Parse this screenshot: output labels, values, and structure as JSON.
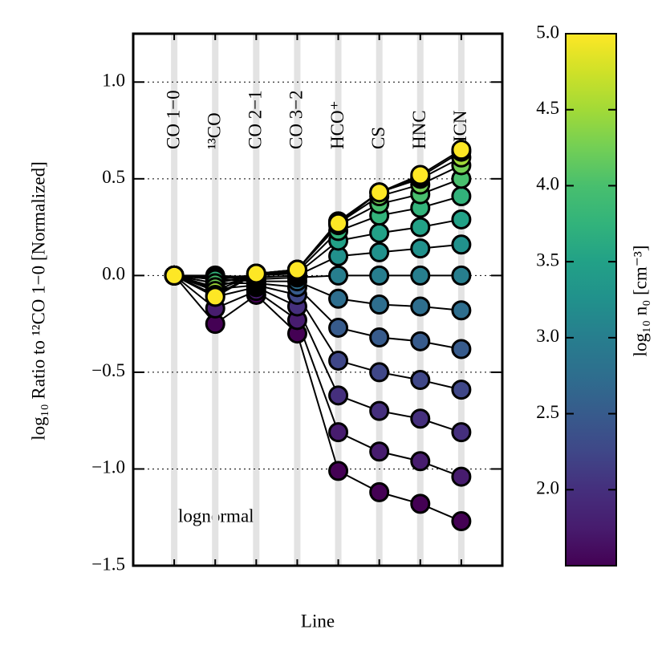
{
  "chart_data": {
    "type": "line",
    "ylabel": "log₁₀ Ratio to ¹²CO 1−0 [Normalized]",
    "xlabel": "Line",
    "annotation": "lognormal",
    "categories": [
      "CO 1−0",
      "¹³CO",
      "CO 2−1",
      "CO 3−2",
      "HCO⁺",
      "CS",
      "HNC",
      "HCN"
    ],
    "series": [
      {
        "color": "#440154",
        "values": [
          0,
          -0.25,
          -0.1,
          -0.3,
          -1.01,
          -1.12,
          -1.18,
          -1.27
        ]
      },
      {
        "color": "#471c6e",
        "values": [
          0,
          -0.17,
          -0.08,
          -0.23,
          -0.81,
          -0.91,
          -0.96,
          -1.04
        ]
      },
      {
        "color": "#452f7d",
        "values": [
          0,
          -0.11,
          -0.06,
          -0.16,
          -0.62,
          -0.7,
          -0.74,
          -0.81
        ]
      },
      {
        "color": "#3f4788",
        "values": [
          0,
          -0.07,
          -0.05,
          -0.1,
          -0.44,
          -0.5,
          -0.54,
          -0.59
        ]
      },
      {
        "color": "#375b8c",
        "values": [
          0,
          -0.04,
          -0.04,
          -0.06,
          -0.27,
          -0.32,
          -0.34,
          -0.38
        ]
      },
      {
        "color": "#2e6e8e",
        "values": [
          0,
          -0.02,
          -0.03,
          -0.03,
          -0.12,
          -0.15,
          -0.16,
          -0.18
        ]
      },
      {
        "color": "#277e8e",
        "values": [
          0,
          -0.01,
          -0.02,
          -0.01,
          0,
          0,
          0,
          0
        ]
      },
      {
        "color": "#21918c",
        "values": [
          0,
          0,
          -0.01,
          0,
          0.1,
          0.12,
          0.14,
          0.16
        ]
      },
      {
        "color": "#22a187",
        "values": [
          0,
          -0.01,
          0,
          0.01,
          0.18,
          0.22,
          0.25,
          0.29
        ]
      },
      {
        "color": "#32b37b",
        "values": [
          0,
          -0.02,
          0,
          0.02,
          0.23,
          0.31,
          0.35,
          0.41
        ]
      },
      {
        "color": "#48bf6e",
        "values": [
          0,
          -0.04,
          0,
          0.03,
          0.26,
          0.37,
          0.42,
          0.5
        ]
      },
      {
        "color": "#73cf55",
        "values": [
          0,
          -0.06,
          0,
          0.03,
          0.27,
          0.41,
          0.47,
          0.57
        ]
      },
      {
        "color": "#a2da37",
        "values": [
          0,
          -0.08,
          0.01,
          0.03,
          0.28,
          0.43,
          0.5,
          0.61
        ]
      },
      {
        "color": "#cfe128",
        "values": [
          0,
          -0.1,
          0.01,
          0.03,
          0.28,
          0.43,
          0.51,
          0.64
        ]
      },
      {
        "color": "#fde725",
        "values": [
          0,
          -0.11,
          0.01,
          0.03,
          0.27,
          0.43,
          0.52,
          0.65
        ]
      }
    ],
    "ylim": [
      -1.5,
      1.25
    ],
    "yticks": [
      {
        "value": 1,
        "label": "1.0"
      },
      {
        "value": 0.5,
        "label": "0.5"
      },
      {
        "value": 0,
        "label": "0.0"
      },
      {
        "value": -0.5,
        "label": "−0.5"
      },
      {
        "value": -1,
        "label": "−1.0"
      },
      {
        "value": -1.5,
        "label": "−1.5"
      }
    ],
    "grid": true,
    "colorbar": {
      "label": "log₁₀ n₀ [cm⁻³]",
      "lim": [
        1.5,
        5.0
      ],
      "ticks": [
        {
          "value": 2,
          "label": "2.0"
        },
        {
          "value": 2.5,
          "label": "2.5"
        },
        {
          "value": 3,
          "label": "3.0"
        },
        {
          "value": 3.5,
          "label": "3.5"
        },
        {
          "value": 4,
          "label": "4.0"
        },
        {
          "value": 4.5,
          "label": "4.5"
        },
        {
          "value": 5,
          "label": "5.0"
        }
      ]
    }
  }
}
